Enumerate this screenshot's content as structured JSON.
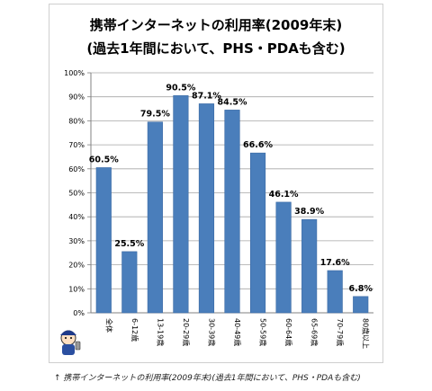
{
  "chart_data": {
    "type": "bar",
    "title_line1": "携帯インターネットの利用率(2009年末)",
    "title_line2": "(過去1年間において、PHS・PDAも含む)",
    "categories": [
      "全体",
      "6-12歳",
      "13-19歳",
      "20-29歳",
      "30-39歳",
      "40-49歳",
      "50-59歳",
      "60-64歳",
      "65-69歳",
      "70-79歳",
      "80歳以上"
    ],
    "values": [
      60.5,
      25.5,
      79.5,
      90.5,
      87.1,
      84.5,
      66.6,
      46.1,
      38.9,
      17.6,
      6.8
    ],
    "data_labels": [
      "60.5%",
      "25.5%",
      "79.5%",
      "90.5%",
      "87.1%",
      "84.5%",
      "66.6%",
      "46.1%",
      "38.9%",
      "17.6%",
      "6.8%"
    ],
    "y_ticks": [
      "0%",
      "10%",
      "20%",
      "30%",
      "40%",
      "50%",
      "60%",
      "70%",
      "80%",
      "90%",
      "100%"
    ],
    "ylim": [
      0,
      100
    ],
    "grid": true,
    "bar_color": "#4a7ebb"
  },
  "caption": "↑ 携帯インターネットの利用率(2009年末)(過去1年間において、PHS・PDAも含む)"
}
